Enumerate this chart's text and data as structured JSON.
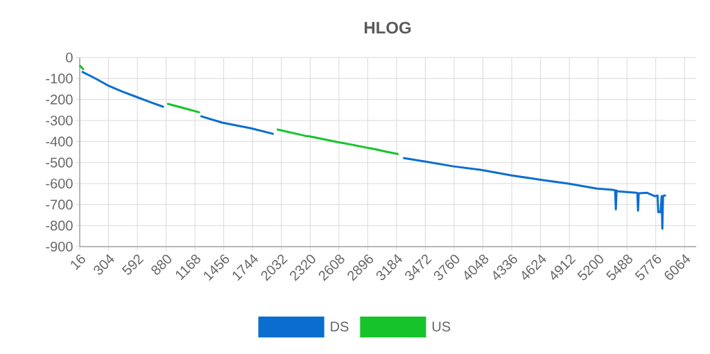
{
  "chart_data": {
    "type": "line",
    "title": "HLOG",
    "xlim": [
      16,
      6180
    ],
    "xticks": [
      16,
      304,
      592,
      880,
      1168,
      1456,
      1744,
      2032,
      2320,
      2608,
      2896,
      3184,
      3472,
      3760,
      4048,
      4336,
      4624,
      4912,
      5200,
      5488,
      5776,
      6064
    ],
    "ylim": [
      -900,
      0
    ],
    "yticks": [
      0,
      -100,
      -200,
      -300,
      -400,
      -500,
      -600,
      -700,
      -800,
      -900
    ],
    "grid": true,
    "legend": "bottom",
    "series": [
      {
        "name": "DS",
        "color": "#0a6ed1",
        "x": [
          44,
          169,
          294,
          440,
          585,
          720,
          849,
          1040,
          1231,
          1440,
          1731,
          1947,
          2600,
          3259,
          3474,
          3752,
          4030,
          4335,
          4613,
          4911,
          5189,
          5349,
          5370,
          5377,
          5384,
          5398,
          5585,
          5592,
          5599,
          5606,
          5689,
          5766,
          5794,
          5801,
          5824,
          5835,
          5842,
          5849,
          5856,
          5870
        ],
        "values": [
          -69,
          -99,
          -132,
          -162,
          -188,
          -212,
          -234,
          null,
          -280,
          -310,
          -337,
          -363,
          null,
          -479,
          -495,
          -518,
          -535,
          -561,
          -581,
          -601,
          -624,
          -630,
          -632,
          -723,
          -633,
          -637,
          -644,
          -645,
          -729,
          -646,
          -644,
          -660,
          -657,
          -736,
          -736,
          -660,
          -815,
          -660,
          -657,
          -657
        ]
      },
      {
        "name": "US",
        "color": "#16c42a",
        "x": [
          20,
          50,
          400,
          898,
          1050,
          1210,
          1600,
          1995,
          2273,
          2321,
          2599,
          2740,
          2884,
          2967,
          3057,
          3196
        ],
        "values": [
          -40,
          -55,
          null,
          -221,
          -240,
          -261,
          null,
          -343,
          -373,
          -376,
          -403,
          -415,
          -429,
          -436,
          -446,
          -459
        ]
      }
    ]
  }
}
